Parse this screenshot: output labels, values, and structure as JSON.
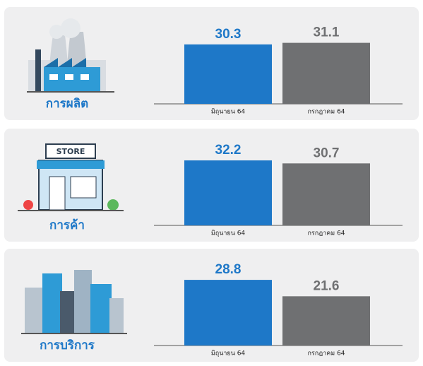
{
  "chart_data": [
    {
      "type": "bar",
      "title": "การผลิต",
      "categories": [
        "มิถุนายน 64",
        "กรกฎาคม 64"
      ],
      "values": [
        30.3,
        31.1
      ],
      "colors": [
        "#1e78c8",
        "#6f7072"
      ],
      "ylim": [
        0,
        36
      ]
    },
    {
      "type": "bar",
      "title": "การค้า",
      "icon_label": "STORE",
      "categories": [
        "มิถุนายน 64",
        "กรกฎาคม 64"
      ],
      "values": [
        32.2,
        30.7
      ],
      "colors": [
        "#1e78c8",
        "#6f7072"
      ],
      "ylim": [
        0,
        35
      ]
    },
    {
      "type": "bar",
      "title": "การบริการ",
      "categories": [
        "มิถุนายน 64",
        "กรกฎาคม 64"
      ],
      "values": [
        28.8,
        21.6
      ],
      "colors": [
        "#1e78c8",
        "#6f7072"
      ],
      "ylim": [
        0,
        31
      ]
    }
  ]
}
